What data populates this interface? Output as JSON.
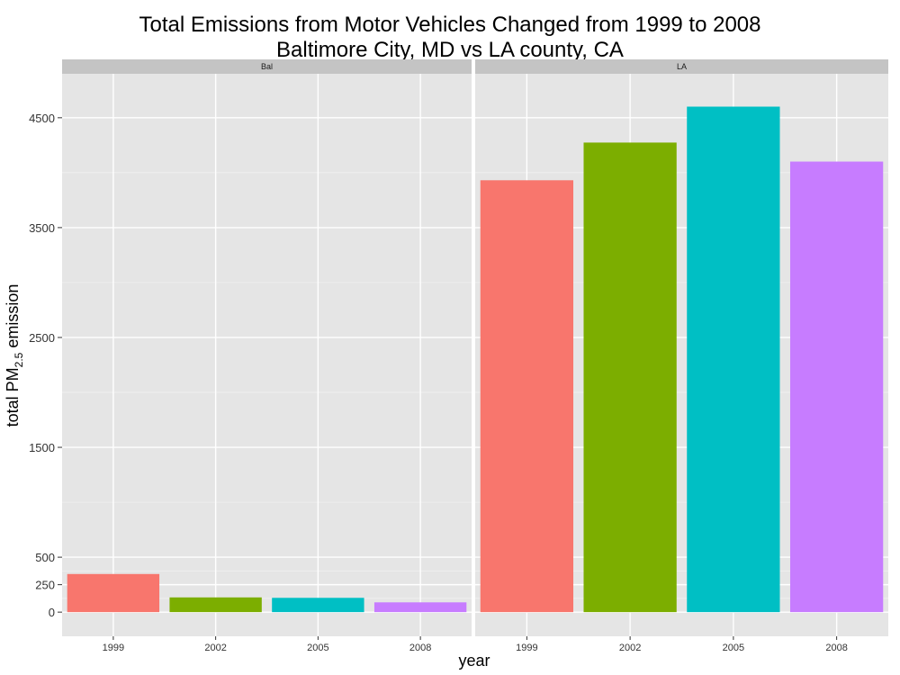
{
  "chart_data": {
    "type": "bar",
    "title_lines": [
      "Total Emissions from Motor Vehicles Changed from 1999 to 2008",
      "Baltimore City, MD vs LA county, CA"
    ],
    "xlabel": "year",
    "ylabel": {
      "prefix": "total PM",
      "subscript": "2.5",
      "suffix": " emission"
    },
    "y_ticks": [
      0,
      250,
      500,
      1500,
      2500,
      3500,
      4500
    ],
    "ylim": [
      -220,
      4900
    ],
    "categories": [
      "1999",
      "2002",
      "2005",
      "2008"
    ],
    "category_colors": [
      "#F8766D",
      "#7CAE00",
      "#00BFC4",
      "#C77CFF"
    ],
    "panel_strip_color": "#C4C4C4",
    "panel_background": "#E5E5E5",
    "grid": true,
    "panels": [
      {
        "name": "Bal",
        "values": [
          347,
          134,
          130,
          89
        ]
      },
      {
        "name": "LA",
        "values": [
          3931,
          4274,
          4601,
          4101
        ]
      }
    ]
  }
}
